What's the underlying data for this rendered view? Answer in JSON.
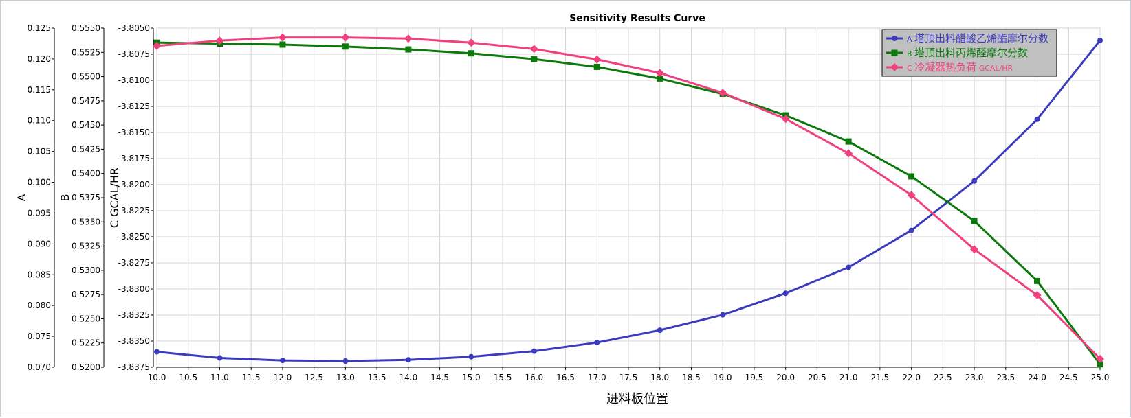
{
  "chart_data": {
    "type": "line",
    "title": "Sensitivity Results Curve",
    "xlabel": "进料板位置",
    "x": [
      10,
      11,
      12,
      13,
      14,
      15,
      16,
      17,
      18,
      19,
      20,
      21,
      22,
      23,
      24,
      25
    ],
    "xlim": [
      10,
      25
    ],
    "x_ticks": [
      "10.0",
      "10.5",
      "11.0",
      "11.5",
      "12.0",
      "12.5",
      "13.0",
      "13.5",
      "14.0",
      "14.5",
      "15.0",
      "15.5",
      "16.0",
      "16.5",
      "17.0",
      "17.5",
      "18.0",
      "18.5",
      "19.0",
      "19.5",
      "20.0",
      "20.5",
      "21.0",
      "21.5",
      "22.0",
      "22.5",
      "23.0",
      "23.5",
      "24.0",
      "24.5",
      "25.0"
    ],
    "grid": true,
    "legend_position": "top-right",
    "axes": [
      {
        "key": "A",
        "label": "A",
        "ylim": [
          0.07,
          0.125
        ],
        "ticks": [
          "0.125",
          "0.120",
          "0.115",
          "0.110",
          "0.105",
          "0.100",
          "0.095",
          "0.090",
          "0.085",
          "0.080",
          "0.075",
          "0.070"
        ]
      },
      {
        "key": "B",
        "label": "B",
        "ylim": [
          0.52,
          0.555
        ],
        "ticks": [
          "0.5550",
          "0.5525",
          "0.5500",
          "0.5475",
          "0.5450",
          "0.5425",
          "0.5400",
          "0.5375",
          "0.5350",
          "0.5325",
          "0.5300",
          "0.5275",
          "0.5250",
          "0.5225",
          "0.5200"
        ]
      },
      {
        "key": "C",
        "label": "C GCAL/HR",
        "ylim": [
          -3.8375,
          -3.805
        ],
        "ticks": [
          "-3.8050",
          "-3.8075",
          "-3.8100",
          "-3.8125",
          "-3.8150",
          "-3.8175",
          "-3.8200",
          "-3.8225",
          "-3.8250",
          "-3.8275",
          "-3.8300",
          "-3.8325",
          "-3.8350",
          "-3.8375"
        ]
      }
    ],
    "series": [
      {
        "axis": "A",
        "prefix": "A",
        "name": "塔顶出料醋酸乙烯酯摩尔分数",
        "unit": "",
        "color": "#3b3bbf",
        "marker": "circle",
        "values": [
          0.0725,
          0.0715,
          0.0711,
          0.071,
          0.0712,
          0.0717,
          0.0726,
          0.074,
          0.076,
          0.0785,
          0.082,
          0.0862,
          0.0922,
          0.1002,
          0.1102,
          0.123
        ]
      },
      {
        "axis": "B",
        "prefix": "B",
        "name": "塔顶出料丙烯醛摩尔分数",
        "unit": "",
        "color": "#0b7a0b",
        "marker": "square",
        "values": [
          0.5535,
          0.5534,
          0.5533,
          0.5531,
          0.5528,
          0.5524,
          0.5518,
          0.551,
          0.5498,
          0.5482,
          0.546,
          0.5433,
          0.5397,
          0.5351,
          0.5289,
          0.5203
        ]
      },
      {
        "axis": "C",
        "prefix": "C",
        "name": "冷凝器热负荷",
        "unit": "GCAL/HR",
        "color": "#f0407f",
        "marker": "diamond",
        "values": [
          -3.8067,
          -3.8062,
          -3.8059,
          -3.8059,
          -3.806,
          -3.8064,
          -3.807,
          -3.808,
          -3.8093,
          -3.8112,
          -3.8137,
          -3.817,
          -3.821,
          -3.8262,
          -3.8306,
          -3.8367
        ]
      }
    ]
  }
}
